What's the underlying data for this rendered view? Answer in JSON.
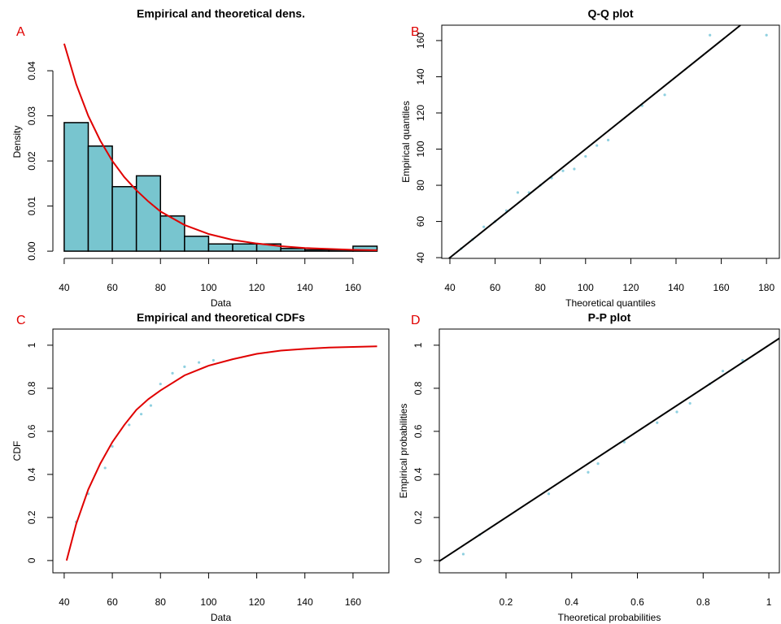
{
  "chart_data": [
    {
      "type": "histogram",
      "panel_label": "A",
      "title": "Empirical and theoretical dens.",
      "x_label": "Data",
      "y_label": "Density",
      "bins": [
        40,
        50,
        60,
        70,
        80,
        90,
        100,
        110,
        120,
        130,
        140,
        150,
        160,
        170
      ],
      "values": [
        0.0285,
        0.0233,
        0.0143,
        0.0167,
        0.0078,
        0.0033,
        0.0016,
        0.0016,
        0.0016,
        0.0006,
        0.0003,
        0.0003,
        0.0011
      ],
      "color": "#78c5cf",
      "curve": {
        "x": [
          40,
          45,
          50,
          55,
          60,
          65,
          70,
          75,
          80,
          90,
          100,
          110,
          120,
          130,
          140,
          150,
          160,
          170
        ],
        "values": [
          0.046,
          0.037,
          0.03,
          0.0245,
          0.02,
          0.0164,
          0.0135,
          0.011,
          0.0088,
          0.0058,
          0.0038,
          0.0025,
          0.0017,
          0.0011,
          0.0007,
          0.0005,
          0.0003,
          0.0002
        ],
        "color": "#e00000"
      },
      "xlim": [
        35.3,
        174.9
      ],
      "xticks": [
        40,
        60,
        80,
        100,
        120,
        140,
        160
      ],
      "ylim": [
        -0.0016,
        0.0501
      ],
      "yticks": [
        {
          "value": 0,
          "label": "0.00"
        },
        0.01,
        0.02,
        0.03,
        0.04
      ],
      "box": false
    },
    {
      "type": "scatter",
      "panel_label": "B",
      "title": "Q-Q plot",
      "x_label": "Theoretical quantiles",
      "y_label": "Empirical quantiles",
      "x": [
        45,
        50,
        55,
        60,
        65,
        70,
        75,
        80,
        85,
        90,
        95,
        100,
        105,
        110,
        125,
        135,
        155,
        180
      ],
      "values": [
        45,
        50,
        57,
        60,
        66,
        76,
        76,
        80,
        84,
        88,
        89,
        96,
        102,
        105,
        124,
        130,
        163,
        163
      ],
      "color": "#8fd0e0",
      "reference_line": true,
      "line_color": "#000000",
      "xlim": [
        36.4,
        185.7
      ],
      "xticks": [
        40,
        60,
        80,
        100,
        120,
        140,
        160,
        180
      ],
      "ylim": [
        39.6,
        168.5
      ],
      "yticks": [
        40,
        60,
        80,
        100,
        120,
        140,
        160
      ],
      "box": true
    },
    {
      "type": "line",
      "panel_label": "C",
      "title": "Empirical and theoretical CDFs",
      "x_label": "Data",
      "y_label": "CDF",
      "x": [
        41,
        45,
        50,
        55,
        60,
        65,
        70,
        75,
        80,
        90,
        100,
        110,
        120,
        130,
        140,
        150,
        160,
        170
      ],
      "values": [
        0,
        0.17,
        0.33,
        0.45,
        0.55,
        0.63,
        0.7,
        0.75,
        0.79,
        0.86,
        0.905,
        0.935,
        0.96,
        0.975,
        0.983,
        0.989,
        0.992,
        0.995
      ],
      "color": "#e00000",
      "points": {
        "x": [
          45,
          50,
          57,
          60,
          67,
          72,
          76,
          80,
          85,
          90,
          96,
          102
        ],
        "values": [
          0.18,
          0.31,
          0.43,
          0.53,
          0.63,
          0.68,
          0.72,
          0.82,
          0.87,
          0.9,
          0.92,
          0.93
        ],
        "color": "#8fd0e0"
      },
      "xlim": [
        35.3,
        174.9
      ],
      "xticks": [
        40,
        60,
        80,
        100,
        120,
        140,
        160
      ],
      "ylim": [
        -0.057,
        1.075
      ],
      "yticks": [
        0.0,
        0.2,
        0.4,
        0.6,
        0.8,
        1.0
      ],
      "box": true
    },
    {
      "type": "scatter",
      "panel_label": "D",
      "title": "P-P plot",
      "x_label": "Theoretical probabilities",
      "y_label": "Empirical probabilities",
      "x": [
        0.07,
        0.12,
        0.33,
        0.45,
        0.48,
        0.56,
        0.66,
        0.72,
        0.76,
        0.82,
        0.86,
        0.92
      ],
      "values": [
        0.03,
        0.12,
        0.31,
        0.41,
        0.45,
        0.55,
        0.64,
        0.69,
        0.73,
        0.82,
        0.88,
        0.93
      ],
      "color": "#8fd0e0",
      "reference_line": true,
      "line_color": "#000000",
      "xlim": [
        -0.003,
        1.032
      ],
      "xticks": [
        0.2,
        0.4,
        0.6,
        0.8,
        1.0
      ],
      "ylim": [
        -0.057,
        1.075
      ],
      "yticks": [
        0.0,
        0.2,
        0.4,
        0.6,
        0.8,
        1.0
      ],
      "box": true
    }
  ]
}
